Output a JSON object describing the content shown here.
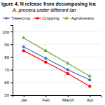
{
  "chart_data": {
    "type": "line",
    "title": "igure 4. N release from decomposing lea",
    "subtitle": "A. procera under different lan",
    "categories": [
      "Jan",
      "Feb",
      "March",
      "Apr"
    ],
    "series": [
      {
        "name": "Tree+crop",
        "color": "#4472C4",
        "marker": "circle",
        "values": [
          88,
          79,
          70,
          62
        ]
      },
      {
        "name": "Cropping",
        "color": "#FF0000",
        "marker": "square",
        "values": [
          85,
          76,
          67,
          57
        ]
      },
      {
        "name": "Agroforestry",
        "color": "#70AD47",
        "marker": "triangle",
        "values": [
          95,
          85,
          75,
          65
        ]
      }
    ],
    "ylim": [
      50,
      105
    ],
    "yticks": [
      50,
      60,
      70,
      80,
      90,
      100
    ],
    "grid": true,
    "legend": "top"
  }
}
